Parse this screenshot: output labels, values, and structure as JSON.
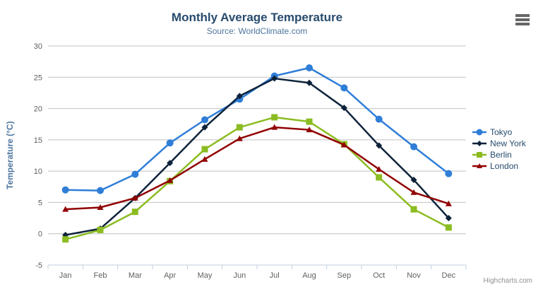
{
  "chart": {
    "credits": "Highcharts.com",
    "export_menu": "hamburger-menu"
  },
  "chart_data": {
    "type": "line",
    "title": "Monthly Average Temperature",
    "subtitle": "Source: WorldClimate.com",
    "xlabel": "",
    "ylabel": "Temperature (°C)",
    "categories": [
      "Jan",
      "Feb",
      "Mar",
      "Apr",
      "May",
      "Jun",
      "Jul",
      "Aug",
      "Sep",
      "Oct",
      "Nov",
      "Dec"
    ],
    "series": [
      {
        "name": "Tokyo",
        "color": "#2f7ed8",
        "marker": "circle",
        "values": [
          7.0,
          6.9,
          9.5,
          14.5,
          18.2,
          21.5,
          25.2,
          26.5,
          23.3,
          18.3,
          13.9,
          9.6
        ]
      },
      {
        "name": "New York",
        "color": "#0d233a",
        "marker": "diamond",
        "values": [
          -0.2,
          0.8,
          5.7,
          11.3,
          17.0,
          22.0,
          24.8,
          24.1,
          20.1,
          14.1,
          8.6,
          2.5
        ]
      },
      {
        "name": "Berlin",
        "color": "#8bbc21",
        "marker": "square",
        "values": [
          -0.9,
          0.6,
          3.5,
          8.4,
          13.5,
          17.0,
          18.6,
          17.9,
          14.3,
          9.0,
          3.9,
          1.0
        ]
      },
      {
        "name": "London",
        "color": "#910000",
        "marker": "triangle",
        "values": [
          3.9,
          4.2,
          5.7,
          8.5,
          11.9,
          15.2,
          17.0,
          16.6,
          14.2,
          10.3,
          6.6,
          4.8
        ]
      }
    ],
    "ylim": [
      -5,
      30
    ],
    "yticks": [
      30,
      25,
      20,
      15,
      10,
      5,
      0,
      -5
    ],
    "grid": true,
    "legend_position": "right",
    "colors": {
      "grid": "#C0C0C0",
      "axis_line": "#C0D0E0",
      "tick_label": "#606060",
      "title": "#274b6d",
      "subtitle": "#4d759e",
      "axis_title": "#4d759e",
      "legend_text": "#274b6d",
      "credits_text": "#909090"
    }
  }
}
